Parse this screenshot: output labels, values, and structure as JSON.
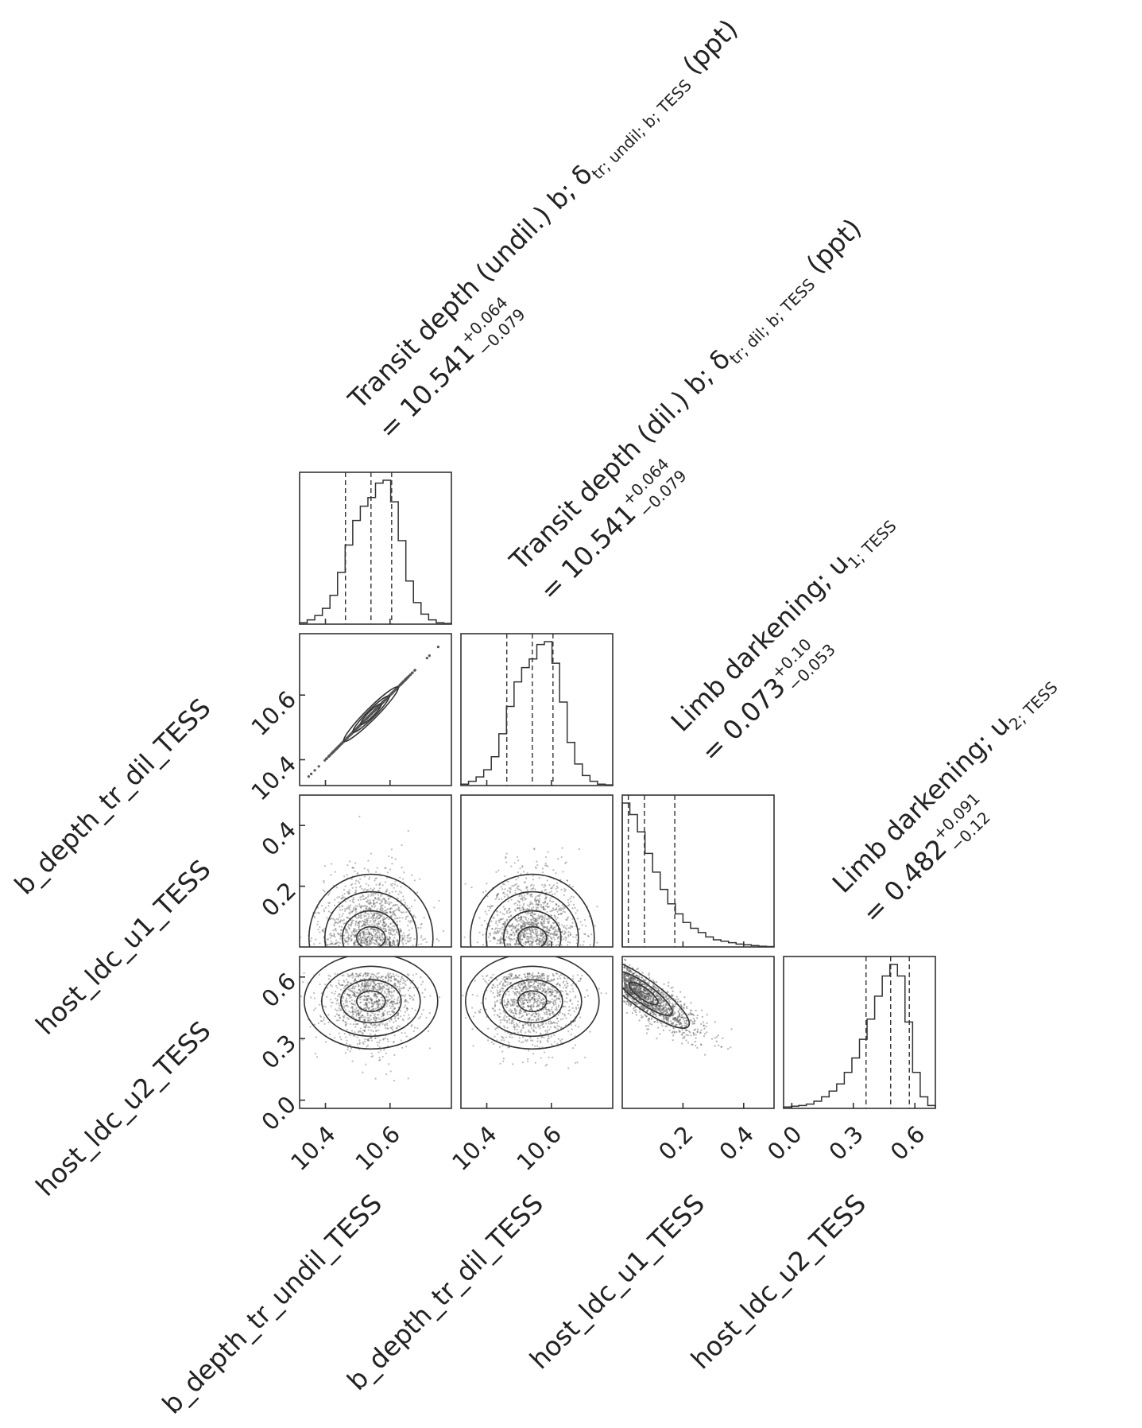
{
  "chart_data": {
    "type": "corner",
    "parameters": [
      {
        "name": "b_depth_tr_undil_TESS",
        "title_main": "Transit depth (undil.) b; δ",
        "title_sub": "tr; undil; b; TESS",
        "title_unit": " (ppt)",
        "value": "= 10.541",
        "err_plus": "+0.064",
        "err_minus": "−0.079",
        "median": 10.541,
        "q16": 10.462,
        "q84": 10.605,
        "range": [
          10.32,
          10.79
        ],
        "ticks": [
          10.4,
          10.6
        ],
        "tick_labels": [
          "10.4",
          "10.6"
        ],
        "histogram": [
          1,
          3,
          6,
          11,
          20,
          36,
          55,
          72,
          82,
          88,
          98,
          100,
          85,
          58,
          30,
          15,
          7,
          3,
          1,
          0.5
        ]
      },
      {
        "name": "b_depth_tr_dil_TESS",
        "title_main": "Transit depth (dil.) b; δ",
        "title_sub": "tr; dil; b; TESS",
        "title_unit": " (ppt)",
        "value": "= 10.541",
        "err_plus": "+0.064",
        "err_minus": "−0.079",
        "median": 10.541,
        "q16": 10.462,
        "q84": 10.605,
        "range": [
          10.32,
          10.79
        ],
        "ticks": [
          10.4,
          10.6
        ],
        "tick_labels": [
          "10.4",
          "10.6"
        ],
        "histogram": [
          1,
          3,
          6,
          11,
          20,
          36,
          55,
          72,
          82,
          88,
          98,
          100,
          85,
          58,
          30,
          15,
          7,
          3,
          1,
          0.5
        ]
      },
      {
        "name": "host_ldc_u1_TESS",
        "title_main": "Limb darkening; u",
        "title_sub": "1; TESS",
        "title_unit": "",
        "value": "= 0.073",
        "err_plus": "+0.10",
        "err_minus": "−0.053",
        "median": 0.073,
        "q16": 0.02,
        "q84": 0.173,
        "range": [
          0.0,
          0.5
        ],
        "ticks": [
          0.2,
          0.4
        ],
        "tick_labels": [
          "0.2",
          "0.4"
        ],
        "histogram": [
          100,
          92,
          80,
          65,
          52,
          40,
          30,
          23,
          17,
          13,
          10,
          7,
          5,
          4,
          3,
          2,
          1.5,
          1,
          0.5,
          0.3
        ]
      },
      {
        "name": "host_ldc_u2_TESS",
        "title_main": "Limb darkening; u",
        "title_sub": "2; TESS",
        "title_unit": "",
        "value": "= 0.482",
        "err_plus": "+0.091",
        "err_minus": "−0.12",
        "median": 0.482,
        "q16": 0.362,
        "q84": 0.573,
        "range": [
          -0.04,
          0.7
        ],
        "ticks": [
          0.0,
          0.3,
          0.6
        ],
        "tick_labels": [
          "0.0",
          "0.3",
          "0.6"
        ],
        "histogram": [
          1,
          1.5,
          2,
          3,
          5,
          8,
          12,
          17,
          25,
          35,
          48,
          62,
          78,
          92,
          100,
          92,
          60,
          25,
          8,
          2
        ]
      }
    ],
    "y_ticks": [
      {
        "row": 1,
        "ticks": [
          10.4,
          10.6
        ],
        "labels": [
          "10.4",
          "10.6"
        ]
      },
      {
        "row": 2,
        "ticks": [
          0.2,
          0.4
        ],
        "labels": [
          "0.2",
          "0.4"
        ]
      },
      {
        "row": 3,
        "ticks": [
          0.0,
          0.3,
          0.6
        ],
        "labels": [
          "0.0",
          "0.3",
          "0.6"
        ]
      }
    ],
    "correlations": {
      "0-1": 0.999,
      "0-2": 0.0,
      "1-2": 0.0,
      "0-3": 0.0,
      "1-3": 0.0,
      "2-3": -0.8
    }
  }
}
